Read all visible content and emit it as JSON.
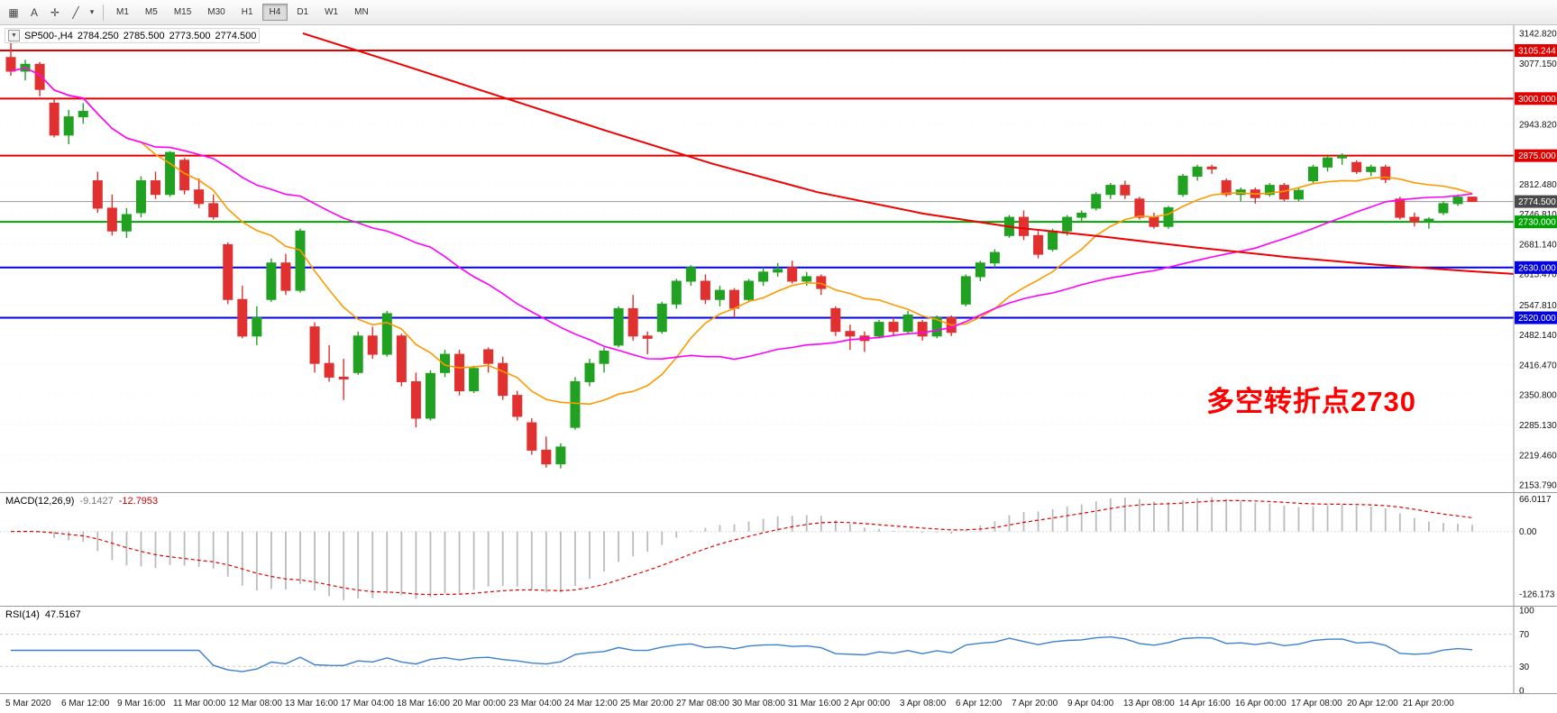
{
  "toolbar": {
    "icons": [
      {
        "name": "indicators-window-icon",
        "glyph": "▦"
      },
      {
        "name": "text-tool-icon",
        "glyph": "A"
      },
      {
        "name": "crosshair-tool-icon",
        "glyph": "✛"
      },
      {
        "name": "line-tool-icon",
        "glyph": "╱"
      },
      {
        "name": "tools-dropdown-arrow-icon",
        "glyph": "▾"
      }
    ],
    "timeframes": [
      "M1",
      "M5",
      "M15",
      "M30",
      "H1",
      "H4",
      "D1",
      "W1",
      "MN"
    ],
    "active_timeframe": "H4"
  },
  "chart": {
    "title": {
      "expander": "▼",
      "symbol": "SP500-,H4",
      "open": "2784.250",
      "high": "2785.500",
      "low": "2773.500",
      "close": "2774.500"
    },
    "annotation": {
      "text": "多空转折点2730",
      "color": "#FF0000"
    },
    "up_color": "#21A121",
    "down_color": "#E03030",
    "ma_fast_color": "#FF9900",
    "ma_slow_color": "#FF00FF",
    "ma_long_color": "#F00000",
    "price_axis": {
      "grid_labels": [
        3142.82,
        3077.15,
        2943.82,
        2812.48,
        2746.81,
        2681.14,
        2615.47,
        2547.81,
        2482.14,
        2416.47,
        2350.8,
        2285.13,
        2219.46,
        2153.79
      ],
      "levels": [
        {
          "value": 3105.244,
          "label": "3105.244",
          "badge": "#E00000",
          "line": "#E00000",
          "w": 2
        },
        {
          "value": 3000.0,
          "label": "3000.000",
          "badge": "#E00000",
          "line": "#E00000",
          "w": 2
        },
        {
          "value": 2875.0,
          "label": "2875.000",
          "badge": "#E00000",
          "line": "#E00000",
          "w": 2
        },
        {
          "value": 2774.5,
          "label": "2774.500",
          "badge": "#4A4A4A",
          "line": "#9A9A9A",
          "w": 1
        },
        {
          "value": 2730.0,
          "label": "2730.000",
          "badge": "#00A400",
          "line": "#00A400",
          "w": 2
        },
        {
          "value": 2630.0,
          "label": "2630.000",
          "badge": "#0000E0",
          "line": "#0000E0",
          "w": 2
        },
        {
          "value": 2520.0,
          "label": "2520.000",
          "badge": "#0000E0",
          "line": "#0000E0",
          "w": 2
        }
      ]
    },
    "ma_long_points": [
      [
        0.2,
        3143
      ],
      [
        0.26,
        3080
      ],
      [
        0.33,
        3005
      ],
      [
        0.4,
        2930
      ],
      [
        0.47,
        2858
      ],
      [
        0.54,
        2795
      ],
      [
        0.61,
        2748
      ],
      [
        0.67,
        2718
      ],
      [
        0.73,
        2697
      ],
      [
        0.79,
        2674
      ],
      [
        0.85,
        2653
      ],
      [
        0.91,
        2636
      ],
      [
        0.97,
        2622
      ],
      [
        1.0,
        2616
      ]
    ],
    "candles": [
      [
        3090,
        3129,
        3050,
        3060
      ],
      [
        3060,
        3085,
        3040,
        3075
      ],
      [
        3075,
        3080,
        3005,
        3020
      ],
      [
        2990,
        3000,
        2915,
        2920
      ],
      [
        2920,
        2975,
        2900,
        2960
      ],
      [
        2960,
        2990,
        2945,
        2972
      ],
      [
        2820,
        2840,
        2750,
        2760
      ],
      [
        2760,
        2790,
        2700,
        2710
      ],
      [
        2710,
        2760,
        2695,
        2746
      ],
      [
        2750,
        2830,
        2740,
        2820
      ],
      [
        2820,
        2840,
        2780,
        2790
      ],
      [
        2790,
        2885,
        2785,
        2882
      ],
      [
        2865,
        2870,
        2790,
        2800
      ],
      [
        2800,
        2825,
        2760,
        2770
      ],
      [
        2770,
        2790,
        2735,
        2741
      ],
      [
        2680,
        2685,
        2550,
        2560
      ],
      [
        2560,
        2590,
        2475,
        2480
      ],
      [
        2480,
        2545,
        2460,
        2520
      ],
      [
        2560,
        2650,
        2555,
        2640
      ],
      [
        2640,
        2660,
        2570,
        2580
      ],
      [
        2580,
        2715,
        2575,
        2710
      ],
      [
        2500,
        2510,
        2400,
        2420
      ],
      [
        2420,
        2460,
        2380,
        2390
      ],
      [
        2390,
        2430,
        2340,
        2386
      ],
      [
        2400,
        2490,
        2395,
        2480
      ],
      [
        2480,
        2500,
        2430,
        2440
      ],
      [
        2440,
        2535,
        2435,
        2529
      ],
      [
        2480,
        2485,
        2370,
        2380
      ],
      [
        2380,
        2400,
        2280,
        2300
      ],
      [
        2300,
        2405,
        2295,
        2398
      ],
      [
        2400,
        2450,
        2390,
        2440
      ],
      [
        2440,
        2450,
        2350,
        2360
      ],
      [
        2360,
        2415,
        2355,
        2409
      ],
      [
        2450,
        2455,
        2400,
        2420
      ],
      [
        2420,
        2435,
        2340,
        2350
      ],
      [
        2350,
        2360,
        2295,
        2304
      ],
      [
        2290,
        2300,
        2220,
        2230
      ],
      [
        2230,
        2260,
        2192,
        2200
      ],
      [
        2200,
        2245,
        2190,
        2237
      ],
      [
        2280,
        2390,
        2275,
        2380
      ],
      [
        2380,
        2430,
        2370,
        2420
      ],
      [
        2420,
        2455,
        2400,
        2447
      ],
      [
        2460,
        2545,
        2455,
        2540
      ],
      [
        2540,
        2570,
        2470,
        2480
      ],
      [
        2480,
        2490,
        2440,
        2475
      ],
      [
        2490,
        2555,
        2485,
        2550
      ],
      [
        2550,
        2605,
        2540,
        2600
      ],
      [
        2600,
        2635,
        2590,
        2630
      ],
      [
        2600,
        2615,
        2550,
        2560
      ],
      [
        2560,
        2590,
        2545,
        2580
      ],
      [
        2580,
        2585,
        2520,
        2541
      ],
      [
        2560,
        2605,
        2555,
        2600
      ],
      [
        2600,
        2630,
        2590,
        2620
      ],
      [
        2620,
        2640,
        2610,
        2626
      ],
      [
        2630,
        2645,
        2595,
        2600
      ],
      [
        2600,
        2620,
        2590,
        2610
      ],
      [
        2610,
        2615,
        2570,
        2584
      ],
      [
        2540,
        2545,
        2480,
        2490
      ],
      [
        2490,
        2505,
        2450,
        2480
      ],
      [
        2480,
        2490,
        2445,
        2470
      ],
      [
        2480,
        2515,
        2475,
        2510
      ],
      [
        2510,
        2520,
        2480,
        2490
      ],
      [
        2490,
        2535,
        2485,
        2526
      ],
      [
        2510,
        2515,
        2470,
        2480
      ],
      [
        2480,
        2525,
        2475,
        2520
      ],
      [
        2520,
        2525,
        2480,
        2488
      ],
      [
        2550,
        2615,
        2545,
        2610
      ],
      [
        2610,
        2645,
        2600,
        2640
      ],
      [
        2640,
        2670,
        2630,
        2663
      ],
      [
        2700,
        2745,
        2695,
        2740
      ],
      [
        2740,
        2755,
        2690,
        2700
      ],
      [
        2700,
        2710,
        2650,
        2659
      ],
      [
        2670,
        2715,
        2665,
        2710
      ],
      [
        2710,
        2745,
        2700,
        2740
      ],
      [
        2740,
        2755,
        2730,
        2749
      ],
      [
        2760,
        2795,
        2755,
        2790
      ],
      [
        2790,
        2815,
        2780,
        2810
      ],
      [
        2810,
        2820,
        2780,
        2789
      ],
      [
        2780,
        2785,
        2735,
        2740
      ],
      [
        2740,
        2750,
        2715,
        2720
      ],
      [
        2720,
        2765,
        2715,
        2761
      ],
      [
        2790,
        2835,
        2785,
        2830
      ],
      [
        2830,
        2855,
        2820,
        2850
      ],
      [
        2850,
        2855,
        2835,
        2846
      ],
      [
        2820,
        2825,
        2785,
        2790
      ],
      [
        2790,
        2805,
        2775,
        2800
      ],
      [
        2800,
        2805,
        2770,
        2783
      ],
      [
        2790,
        2815,
        2785,
        2810
      ],
      [
        2810,
        2815,
        2775,
        2780
      ],
      [
        2780,
        2805,
        2775,
        2799
      ],
      [
        2820,
        2855,
        2815,
        2850
      ],
      [
        2850,
        2875,
        2840,
        2870
      ],
      [
        2870,
        2880,
        2855,
        2874
      ],
      [
        2860,
        2865,
        2835,
        2840
      ],
      [
        2840,
        2855,
        2830,
        2850
      ],
      [
        2850,
        2855,
        2815,
        2823
      ],
      [
        2780,
        2785,
        2735,
        2740
      ],
      [
        2740,
        2750,
        2720,
        2730
      ],
      [
        2730,
        2740,
        2715,
        2736
      ],
      [
        2750,
        2775,
        2745,
        2770
      ],
      [
        2770,
        2790,
        2765,
        2784.25
      ],
      [
        2784.25,
        2785.5,
        2773.5,
        2774.5
      ]
    ]
  },
  "macd": {
    "label": "MACD(12,26,9)",
    "value": "-9.1427",
    "signal": "-12.7953",
    "axis": [
      "66.0117",
      "0.00",
      "-126.173"
    ],
    "axis_values": [
      66.0117,
      0,
      -126.173
    ],
    "hist_color": "#BBBBBB",
    "signal_color": "#E00000"
  },
  "rsi": {
    "label": "RSI(14)",
    "value": "47.5167",
    "axis": [
      "100",
      "70",
      "30",
      "0"
    ],
    "axis_values": [
      100,
      70,
      30,
      0
    ],
    "dotted_levels": [
      70,
      30
    ],
    "line_color": "#3C80D0"
  },
  "time_axis": {
    "labels": [
      "5 Mar 2020",
      "6 Mar 12:00",
      "9 Mar 16:00",
      "11 Mar 00:00",
      "12 Mar 08:00",
      "13 Mar 16:00",
      "17 Mar 04:00",
      "18 Mar 16:00",
      "20 Mar 00:00",
      "23 Mar 04:00",
      "24 Mar 12:00",
      "25 Mar 20:00",
      "27 Mar 08:00",
      "30 Mar 08:00",
      "31 Mar 16:00",
      "2 Apr 00:00",
      "3 Apr 08:00",
      "6 Apr 12:00",
      "7 Apr 20:00",
      "9 Apr 04:00",
      "13 Apr 08:00",
      "14 Apr 16:00",
      "16 Apr 00:00",
      "17 Apr 08:00",
      "20 Apr 12:00",
      "21 Apr 20:00"
    ]
  }
}
